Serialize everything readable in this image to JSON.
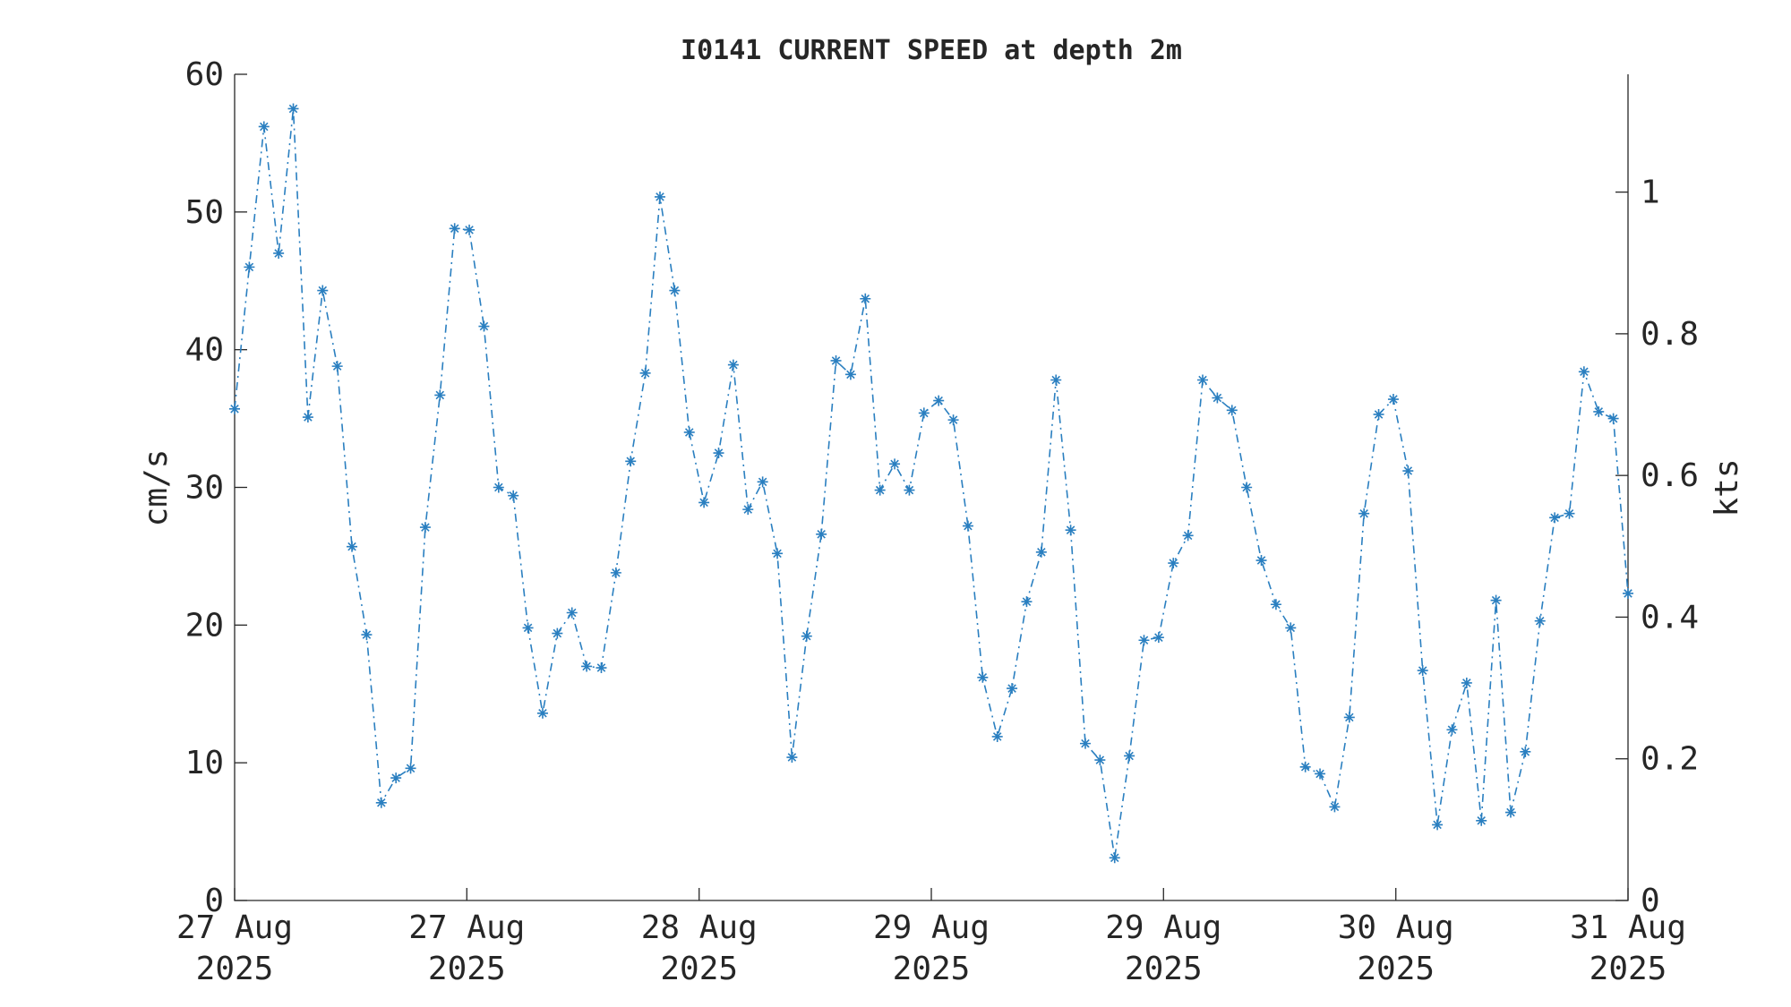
{
  "chart_data": {
    "type": "line",
    "title": "I0141 CURRENT SPEED at depth 2m",
    "y_label": "cm/s",
    "y2_label": "kts",
    "xlim": [
      0,
      95
    ],
    "xticks": [
      {
        "value": 0,
        "label": "27 Aug\n2025"
      },
      {
        "value": 15.83,
        "label": "27 Aug\n2025"
      },
      {
        "value": 31.67,
        "label": "28 Aug\n2025"
      },
      {
        "value": 47.5,
        "label": "29 Aug\n2025"
      },
      {
        "value": 63.33,
        "label": "29 Aug\n2025"
      },
      {
        "value": 79.17,
        "label": "30 Aug\n2025"
      },
      {
        "value": 95,
        "label": "31 Aug\n2025"
      }
    ],
    "ylim": [
      0,
      60
    ],
    "yticks": [
      0,
      10,
      20,
      30,
      40,
      50,
      60
    ],
    "y2lim": [
      0,
      1.1663
    ],
    "y2ticks": [
      0,
      0.2,
      0.4,
      0.6,
      0.8,
      1
    ],
    "series": [
      {
        "color": "#2a7fc0",
        "line_style": "dash-dot",
        "marker": "asterisk",
        "values": [
          35.7,
          46,
          56.2,
          47,
          57.5,
          35.1,
          44.3,
          38.8,
          25.7,
          19.3,
          7.1,
          8.9,
          9.6,
          27.1,
          36.7,
          48.8,
          48.7,
          41.7,
          30,
          29.4,
          19.8,
          13.6,
          19.4,
          20.9,
          17,
          16.9,
          23.8,
          31.9,
          38.3,
          51.1,
          44.3,
          34,
          28.9,
          32.5,
          38.9,
          28.4,
          30.4,
          25.2,
          10.4,
          19.2,
          26.6,
          39.2,
          38.2,
          43.7,
          29.8,
          31.7,
          29.8,
          35.4,
          36.3,
          34.9,
          27.2,
          16.2,
          11.9,
          15.4,
          21.7,
          25.3,
          37.8,
          26.9,
          11.4,
          10.2,
          3.1,
          10.5,
          18.9,
          19.1,
          24.5,
          26.5,
          37.8,
          36.5,
          35.6,
          30,
          24.7,
          21.5,
          19.8,
          9.7,
          9.2,
          6.8,
          13.3,
          28.1,
          35.3,
          36.4,
          31.2,
          16.7,
          5.5,
          12.4,
          15.8,
          5.8,
          21.8,
          6.4,
          10.8,
          20.3,
          27.8,
          28.1,
          38.4,
          35.5,
          35,
          22.3
        ]
      }
    ]
  }
}
